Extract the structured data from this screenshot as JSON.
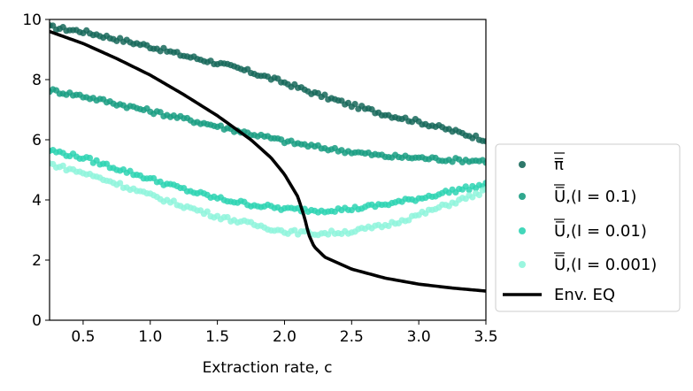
{
  "chart_data": {
    "type": "scatter",
    "xlabel": "Extraction rate, c",
    "ylabel": "",
    "xlim": [
      0.25,
      3.5
    ],
    "ylim": [
      0,
      10
    ],
    "xticks": [
      "0.5",
      "1.0",
      "1.5",
      "2.0",
      "2.5",
      "3.0",
      "3.5"
    ],
    "yticks": [
      "0",
      "2",
      "4",
      "6",
      "8",
      "10"
    ],
    "grid": false,
    "legend_position": "right",
    "series": [
      {
        "name": "π̅",
        "kind": "scatter",
        "color": "#17695a",
        "x": [
          0.25,
          0.5,
          0.75,
          1.0,
          1.25,
          1.5,
          1.75,
          2.0,
          2.25,
          2.5,
          2.75,
          3.0,
          3.25,
          3.5
        ],
        "y": [
          9.75,
          9.6,
          9.35,
          9.1,
          8.8,
          8.55,
          8.25,
          7.9,
          7.5,
          7.15,
          6.85,
          6.6,
          6.3,
          6.0
        ]
      },
      {
        "name": "U̅,(I = 0.1)",
        "kind": "scatter",
        "color": "#1a9d82",
        "x": [
          0.25,
          0.5,
          0.75,
          1.0,
          1.25,
          1.5,
          1.75,
          2.0,
          2.25,
          2.5,
          2.75,
          3.0,
          3.25,
          3.5
        ],
        "y": [
          7.65,
          7.45,
          7.2,
          6.95,
          6.7,
          6.45,
          6.2,
          5.95,
          5.75,
          5.6,
          5.45,
          5.4,
          5.33,
          5.3
        ]
      },
      {
        "name": "U̅,(I = 0.01)",
        "kind": "scatter",
        "color": "#2ed3b3",
        "x": [
          0.25,
          0.5,
          0.75,
          1.0,
          1.25,
          1.5,
          1.75,
          2.0,
          2.25,
          2.5,
          2.75,
          3.0,
          3.25,
          3.5
        ],
        "y": [
          5.65,
          5.4,
          5.05,
          4.7,
          4.35,
          4.05,
          3.85,
          3.7,
          3.65,
          3.7,
          3.85,
          4.05,
          4.3,
          4.5
        ]
      },
      {
        "name": "U̅,(I = 0.001)",
        "kind": "scatter",
        "color": "#8ff5dc",
        "x": [
          0.25,
          0.5,
          0.75,
          1.0,
          1.25,
          1.5,
          1.75,
          2.0,
          2.25,
          2.5,
          2.75,
          3.0,
          3.25,
          3.5
        ],
        "y": [
          5.2,
          4.9,
          4.55,
          4.15,
          3.8,
          3.45,
          3.2,
          2.95,
          2.88,
          2.95,
          3.15,
          3.5,
          3.9,
          4.3
        ]
      },
      {
        "name": "Env. EQ",
        "kind": "line",
        "color": "#000000",
        "x": [
          0.25,
          0.5,
          0.75,
          1.0,
          1.25,
          1.5,
          1.75,
          1.9,
          2.0,
          2.1,
          2.15,
          2.18,
          2.22,
          2.3,
          2.5,
          2.75,
          3.0,
          3.25,
          3.5
        ],
        "y": [
          9.6,
          9.2,
          8.7,
          8.15,
          7.5,
          6.8,
          6.0,
          5.4,
          4.85,
          4.1,
          3.4,
          2.85,
          2.45,
          2.1,
          1.7,
          1.4,
          1.2,
          1.07,
          0.97
        ]
      }
    ]
  }
}
